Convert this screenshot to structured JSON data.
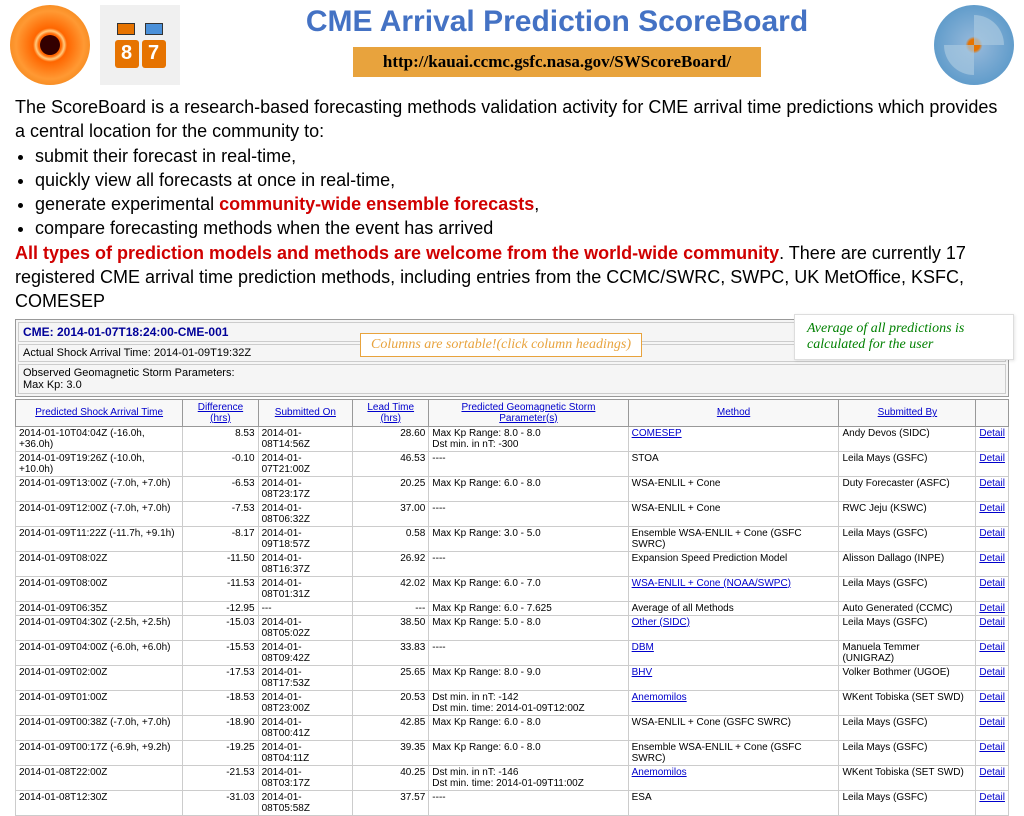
{
  "header": {
    "title": "CME Arrival Prediction ScoreBoard",
    "url": "http://kauai.ccmc.gsfc.nasa.gov/SWScoreBoard/",
    "score_digits": [
      "8",
      "7"
    ]
  },
  "desc": {
    "intro": "The ScoreBoard is a research-based forecasting methods validation activity for CME arrival time predictions which provides a central location for the community to:",
    "b1": "submit their forecast in real-time,",
    "b2": "quickly view all forecasts at once in real-time,",
    "b3a": "generate experimental ",
    "b3b": "community-wide ensemble forecasts",
    "b3c": ",",
    "b4": "compare forecasting methods when the event has arrived",
    "emph": "All types of prediction models and methods are welcome from the world-wide community",
    "tail": ". There are currently 17 registered CME arrival time prediction methods, including entries from the CCMC/SWRC, SWPC, UK MetOffice, KSFC, COMESEP"
  },
  "callout1": "Columns are sortable!(click column headings)",
  "callout2": "Average of all predictions is calculated for the user",
  "event": {
    "title": "CME: 2014-01-07T18:24:00-CME-001",
    "actual": "Actual Shock Arrival Time: 2014-01-09T19:32Z",
    "obs1": "Observed Geomagnetic Storm Parameters:",
    "obs2": "Max Kp: 3.0"
  },
  "cols": [
    "Predicted Shock Arrival Time",
    "Difference (hrs)",
    "Submitted On",
    "Lead Time (hrs)",
    "Predicted Geomagnetic Storm Parameter(s)",
    "Method",
    "Submitted By",
    ""
  ],
  "rows": [
    {
      "t": "2014-01-10T04:04Z (-16.0h, +36.0h)",
      "d": "8.53",
      "s": "2014-01-08T14:56Z",
      "l": "28.60",
      "p": "Max Kp Range: 8.0 - 8.0\nDst min. in nT: -300",
      "m": "COMESEP",
      "ml": true,
      "by": "Andy Devos (SIDC)"
    },
    {
      "t": "2014-01-09T19:26Z (-10.0h, +10.0h)",
      "d": "-0.10",
      "s": "2014-01-07T21:00Z",
      "l": "46.53",
      "p": "----",
      "m": "STOA",
      "ml": false,
      "by": "Leila Mays (GSFC)"
    },
    {
      "t": "2014-01-09T13:00Z (-7.0h, +7.0h)",
      "d": "-6.53",
      "s": "2014-01-08T23:17Z",
      "l": "20.25",
      "p": "Max Kp Range: 6.0 - 8.0",
      "m": "WSA-ENLIL + Cone",
      "ml": false,
      "by": "Duty Forecaster (ASFC)"
    },
    {
      "t": "2014-01-09T12:00Z (-7.0h, +7.0h)",
      "d": "-7.53",
      "s": "2014-01-08T06:32Z",
      "l": "37.00",
      "p": "----",
      "m": "WSA-ENLIL + Cone",
      "ml": false,
      "by": "RWC Jeju (KSWC)"
    },
    {
      "t": "2014-01-09T11:22Z (-11.7h, +9.1h)",
      "d": "-8.17",
      "s": "2014-01-09T18:57Z",
      "l": "0.58",
      "p": "Max Kp Range: 3.0 - 5.0",
      "m": "Ensemble WSA-ENLIL + Cone (GSFC SWRC)",
      "ml": false,
      "by": "Leila Mays (GSFC)"
    },
    {
      "t": "2014-01-09T08:02Z",
      "d": "-11.50",
      "s": "2014-01-08T16:37Z",
      "l": "26.92",
      "p": "----",
      "m": "Expansion Speed Prediction Model",
      "ml": false,
      "by": "Alisson Dallago (INPE)"
    },
    {
      "t": "2014-01-09T08:00Z",
      "d": "-11.53",
      "s": "2014-01-08T01:31Z",
      "l": "42.02",
      "p": "Max Kp Range: 6.0 - 7.0",
      "m": "WSA-ENLIL + Cone (NOAA/SWPC)",
      "ml": true,
      "by": "Leila Mays (GSFC)"
    },
    {
      "t": "2014-01-09T06:35Z",
      "d": "-12.95",
      "s": "---",
      "l": "---",
      "p": "Max Kp Range: 6.0 - 7.625",
      "m": "Average of all Methods",
      "ml": false,
      "by": "Auto Generated (CCMC)"
    },
    {
      "t": "2014-01-09T04:30Z (-2.5h, +2.5h)",
      "d": "-15.03",
      "s": "2014-01-08T05:02Z",
      "l": "38.50",
      "p": "Max Kp Range: 5.0 - 8.0",
      "m": "Other (SIDC)",
      "ml": true,
      "by": "Leila Mays (GSFC)"
    },
    {
      "t": "2014-01-09T04:00Z (-6.0h, +6.0h)",
      "d": "-15.53",
      "s": "2014-01-08T09:42Z",
      "l": "33.83",
      "p": "----",
      "m": "DBM",
      "ml": true,
      "by": "Manuela Temmer (UNIGRAZ)"
    },
    {
      "t": "2014-01-09T02:00Z",
      "d": "-17.53",
      "s": "2014-01-08T17:53Z",
      "l": "25.65",
      "p": "Max Kp Range: 8.0 - 9.0",
      "m": "BHV",
      "ml": true,
      "by": "Volker Bothmer (UGOE)"
    },
    {
      "t": "2014-01-09T01:00Z",
      "d": "-18.53",
      "s": "2014-01-08T23:00Z",
      "l": "20.53",
      "p": "Dst min. in nT: -142\nDst min. time: 2014-01-09T12:00Z",
      "m": "Anemomilos",
      "ml": true,
      "by": "WKent Tobiska (SET SWD)"
    },
    {
      "t": "2014-01-09T00:38Z (-7.0h, +7.0h)",
      "d": "-18.90",
      "s": "2014-01-08T00:41Z",
      "l": "42.85",
      "p": "Max Kp Range: 6.0 - 8.0",
      "m": "WSA-ENLIL + Cone (GSFC SWRC)",
      "ml": false,
      "by": "Leila Mays (GSFC)"
    },
    {
      "t": "2014-01-09T00:17Z (-6.9h, +9.2h)",
      "d": "-19.25",
      "s": "2014-01-08T04:11Z",
      "l": "39.35",
      "p": "Max Kp Range: 6.0 - 8.0",
      "m": "Ensemble WSA-ENLIL + Cone (GSFC SWRC)",
      "ml": false,
      "by": "Leila Mays (GSFC)"
    },
    {
      "t": "2014-01-08T22:00Z",
      "d": "-21.53",
      "s": "2014-01-08T03:17Z",
      "l": "40.25",
      "p": "Dst min. in nT: -146\nDst min. time: 2014-01-09T11:00Z",
      "m": "Anemomilos",
      "ml": true,
      "by": "WKent Tobiska (SET SWD)"
    },
    {
      "t": "2014-01-08T12:30Z",
      "d": "-31.03",
      "s": "2014-01-08T05:58Z",
      "l": "37.57",
      "p": "----",
      "m": "ESA",
      "ml": false,
      "by": "Leila Mays (GSFC)"
    }
  ],
  "detail_label": "Detail"
}
